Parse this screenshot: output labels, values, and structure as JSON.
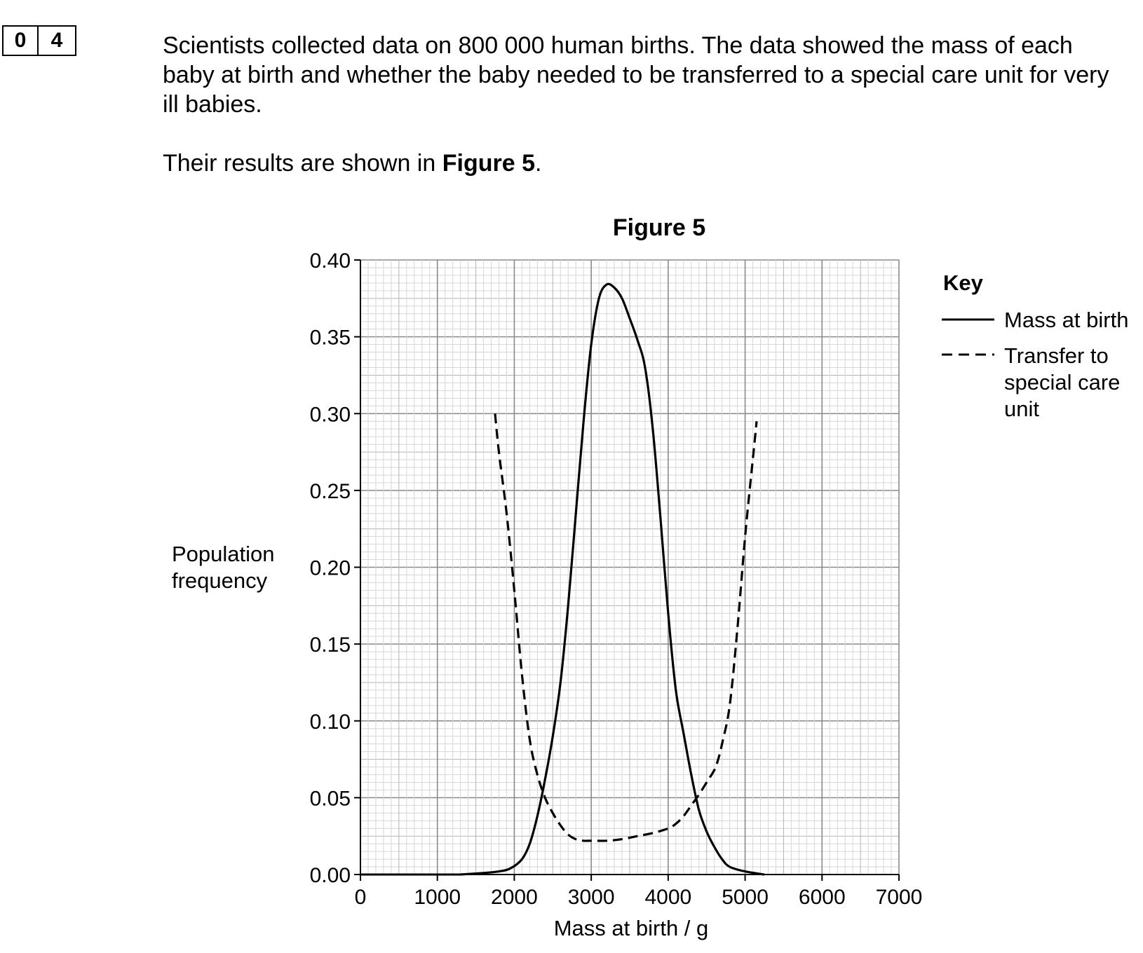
{
  "question": {
    "number_digits": [
      "0",
      "4"
    ],
    "intro": "Scientists collected data on 800 000 human births.  The data showed the mass of each baby at birth and whether the baby needed to be transferred to a special care unit for very ill babies.",
    "results_prefix": "Their results are shown in ",
    "results_figure": "Figure 5",
    "results_suffix": "."
  },
  "chart_data": {
    "type": "line",
    "title": "Figure 5",
    "xlabel": "Mass at birth / g",
    "ylabel_lines": [
      "Population",
      "frequency"
    ],
    "xlim": [
      0,
      7000
    ],
    "ylim": [
      0,
      0.4
    ],
    "x_ticks": [
      "0",
      "1000",
      "2000",
      "3000",
      "4000",
      "5000",
      "6000",
      "7000"
    ],
    "y_ticks": [
      "0.00",
      "0.05",
      "0.10",
      "0.15",
      "0.20",
      "0.25",
      "0.30",
      "0.35",
      "0.40"
    ],
    "grid": true,
    "legend_title": "Key",
    "legend_position": "right",
    "series": [
      {
        "name": "Mass at birth",
        "style": "solid",
        "points": [
          [
            1300,
            0
          ],
          [
            1600,
            0.001
          ],
          [
            1800,
            0.002
          ],
          [
            1950,
            0.004
          ],
          [
            2100,
            0.01
          ],
          [
            2200,
            0.02
          ],
          [
            2300,
            0.038
          ],
          [
            2400,
            0.062
          ],
          [
            2500,
            0.09
          ],
          [
            2600,
            0.125
          ],
          [
            2700,
            0.175
          ],
          [
            2800,
            0.235
          ],
          [
            2900,
            0.295
          ],
          [
            3000,
            0.345
          ],
          [
            3100,
            0.375
          ],
          [
            3200,
            0.384
          ],
          [
            3300,
            0.382
          ],
          [
            3400,
            0.375
          ],
          [
            3500,
            0.362
          ],
          [
            3600,
            0.348
          ],
          [
            3700,
            0.33
          ],
          [
            3800,
            0.29
          ],
          [
            3900,
            0.232
          ],
          [
            4000,
            0.17
          ],
          [
            4100,
            0.12
          ],
          [
            4200,
            0.092
          ],
          [
            4300,
            0.065
          ],
          [
            4400,
            0.042
          ],
          [
            4500,
            0.028
          ],
          [
            4600,
            0.018
          ],
          [
            4700,
            0.01
          ],
          [
            4800,
            0.005
          ],
          [
            5000,
            0.002
          ],
          [
            5250,
            0.0
          ]
        ]
      },
      {
        "name": "Transfer to special care unit",
        "style": "dashed",
        "points": [
          [
            1750,
            0.3
          ],
          [
            1800,
            0.275
          ],
          [
            1900,
            0.235
          ],
          [
            2000,
            0.185
          ],
          [
            2100,
            0.13
          ],
          [
            2200,
            0.088
          ],
          [
            2300,
            0.065
          ],
          [
            2400,
            0.05
          ],
          [
            2500,
            0.04
          ],
          [
            2600,
            0.032
          ],
          [
            2700,
            0.026
          ],
          [
            2800,
            0.023
          ],
          [
            2900,
            0.022
          ],
          [
            3000,
            0.022
          ],
          [
            3200,
            0.022
          ],
          [
            3400,
            0.023
          ],
          [
            3600,
            0.025
          ],
          [
            3800,
            0.027
          ],
          [
            4000,
            0.03
          ],
          [
            4100,
            0.033
          ],
          [
            4200,
            0.038
          ],
          [
            4300,
            0.045
          ],
          [
            4400,
            0.052
          ],
          [
            4500,
            0.06
          ],
          [
            4600,
            0.068
          ],
          [
            4650,
            0.075
          ],
          [
            4700,
            0.085
          ],
          [
            4800,
            0.11
          ],
          [
            4900,
            0.16
          ],
          [
            5000,
            0.22
          ],
          [
            5100,
            0.27
          ],
          [
            5150,
            0.295
          ]
        ]
      }
    ],
    "legend_text_lines": [
      [
        "Mass at birth"
      ],
      [
        "Transfer to",
        "special care",
        "unit"
      ]
    ]
  }
}
